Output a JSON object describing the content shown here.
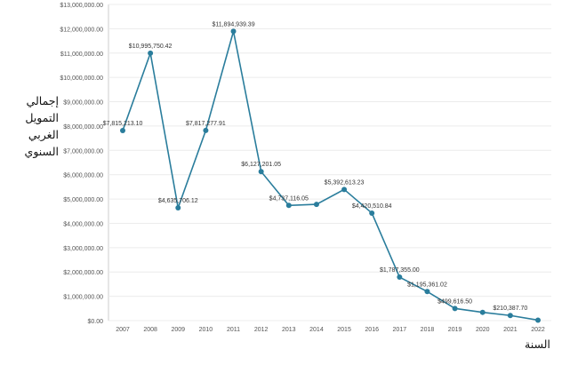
{
  "chart_data": {
    "type": "line",
    "title": "",
    "xlabel": "السنة",
    "ylabel": "إجمالي التمويل الغربي السنوي",
    "ylabel_lines": [
      "إجمالي",
      "التمويل",
      "الغربي",
      "السنوي"
    ],
    "ylim": [
      0,
      13000000
    ],
    "yticks": [
      "$0.00",
      "$1,000,000.00",
      "$2,000,000.00",
      "$3,000,000.00",
      "$4,000,000.00",
      "$5,000,000.00",
      "$6,000,000.00",
      "$7,000,000.00",
      "$8,000,000.00",
      "$9,000,000.00",
      "$10,000,000.00",
      "$11,000,000.00",
      "$12,000,000.00",
      "$13,000,000.00"
    ],
    "categories": [
      "2007",
      "2008",
      "2009",
      "2010",
      "2011",
      "2012",
      "2013",
      "2014",
      "2015",
      "2016",
      "2017",
      "2018",
      "2019",
      "2020",
      "2021",
      "2022"
    ],
    "values": [
      7815213.1,
      10995750.42,
      4635706.12,
      7817277.91,
      11894939.39,
      6127201.05,
      4737116.05,
      4780000,
      5392613.23,
      4420510.84,
      1787355.0,
      1195361.02,
      499616.5,
      340000,
      210387.7,
      20000
    ],
    "labels": [
      "$7,815,213.10",
      "$10,995,750.42",
      "$4,635,706.12",
      "$7,817,277.91",
      "$11,894,939.39",
      "$6,127,201.05",
      "$4,737,116.05",
      "",
      "$5,392,613.23",
      "$4,420,510.84",
      "$1,787,355.00",
      "$1,195,361.02",
      "$499,616.50",
      "",
      "$210,387.70",
      ""
    ],
    "grid": true,
    "color": "#2a7d9c"
  }
}
